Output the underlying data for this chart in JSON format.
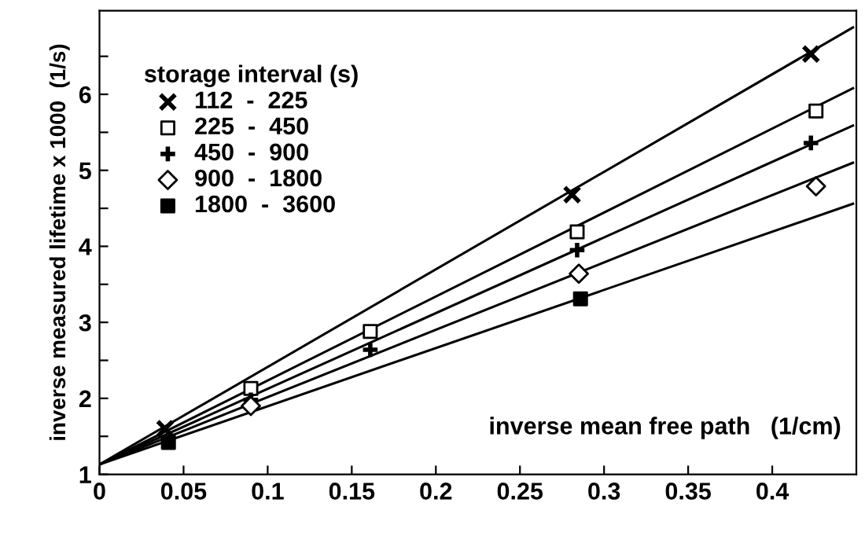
{
  "chart_data": {
    "type": "scatter",
    "xlabel": "inverse mean free path   (1/cm)",
    "ylabel": "inverse measured lifetime x 1000  (1/s)",
    "legend_title": "storage interval (s)",
    "legend": "top left",
    "grid": false,
    "xlim": [
      0,
      0.45
    ],
    "ylim": [
      1,
      7.1
    ],
    "xticks": [
      0,
      0.05,
      0.1,
      0.15,
      0.2,
      0.25,
      0.3,
      0.35,
      0.4
    ],
    "yticks": [
      1,
      {
        "value": 1.5,
        "label": null
      },
      2,
      {
        "value": 2.5,
        "label": null
      },
      3,
      {
        "value": 3.5,
        "label": null
      },
      4,
      {
        "value": 4.5,
        "label": null
      },
      5,
      {
        "value": 5.5,
        "label": null
      },
      6,
      {
        "value": 6.5,
        "label": null
      }
    ],
    "series": [
      {
        "name": "112  -  225",
        "marker": "x",
        "color": "#000000",
        "x": [
          0.039,
          0.281,
          0.423
        ],
        "values": [
          1.6,
          4.68,
          6.53
        ]
      },
      {
        "name": "225  -  450",
        "marker": "square",
        "color": "#000000",
        "x": [
          0.09,
          0.161,
          0.284,
          0.426
        ],
        "values": [
          2.13,
          2.88,
          4.19,
          5.78
        ]
      },
      {
        "name": "450  -  900",
        "marker": "cross",
        "color": "#000000",
        "x": [
          0.09,
          0.161,
          0.284,
          0.423
        ],
        "values": [
          1.98,
          2.64,
          3.95,
          5.36
        ]
      },
      {
        "name": "900  -  1800",
        "marker": "diamond",
        "color": "#000000",
        "x": [
          0.09,
          0.285,
          0.426
        ],
        "values": [
          1.9,
          3.64,
          4.79
        ]
      },
      {
        "name": "1800  -  3600",
        "marker": "square",
        "color": "#000000",
        "x": [
          0.041,
          0.286
        ],
        "values": [
          1.42,
          3.31
        ]
      },
      {
        "type": "line",
        "color": "#000000",
        "x": [
          0,
          0.448
        ],
        "values": [
          1.13,
          6.88
        ]
      },
      {
        "type": "line",
        "color": "#000000",
        "x": [
          0,
          0.448
        ],
        "values": [
          1.13,
          6.08
        ]
      },
      {
        "type": "line",
        "color": "#000000",
        "x": [
          0,
          0.448
        ],
        "values": [
          1.13,
          5.59
        ]
      },
      {
        "type": "line",
        "color": "#000000",
        "x": [
          0,
          0.448
        ],
        "values": [
          1.13,
          5.1
        ]
      },
      {
        "type": "line",
        "color": "#000000",
        "x": [
          0,
          0.448
        ],
        "values": [
          1.13,
          4.56
        ]
      }
    ]
  }
}
